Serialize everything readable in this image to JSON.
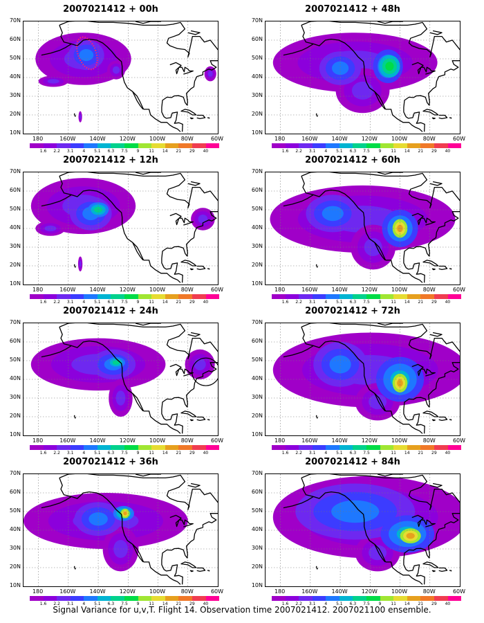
{
  "lat_labels": [
    "70N",
    "60N",
    "50N",
    "40N",
    "30N",
    "20N",
    "10N"
  ],
  "lon_labels": [
    "180",
    "160W",
    "140W",
    "120W",
    "100W",
    "80W",
    "60W"
  ],
  "colorbar": {
    "levels": [
      "1.6",
      "2.2",
      "3.1",
      "4",
      "5.1",
      "6.3",
      "7.5",
      "9",
      "11",
      "14",
      "21",
      "29",
      "40"
    ],
    "colors": [
      "#a000c8",
      "#8c00dc",
      "#6e28f0",
      "#3c3cff",
      "#1e78ff",
      "#00b4d2",
      "#00d28c",
      "#00dc46",
      "#a0e632",
      "#e6dc32",
      "#e6a01e",
      "#f07828",
      "#f03c50",
      "#ff0096"
    ]
  },
  "caption": "Signal Variance for u,v,T. Flight 14. Observation time 2007021412. 2007021100 ensemble.",
  "panels": [
    {
      "title": "2007021412 + 00h",
      "blobs": [
        {
          "lon": -150,
          "lat": 50,
          "rx": 32,
          "ry": 14,
          "lvl": 0
        },
        {
          "lon": -148,
          "lat": 52,
          "rx": 12,
          "ry": 8,
          "lvl": 2
        },
        {
          "lon": -170,
          "lat": 38,
          "rx": 10,
          "ry": 3,
          "lvl": 0
        },
        {
          "lon": -128,
          "lat": 44,
          "rx": 6,
          "ry": 5,
          "lvl": 0
        },
        {
          "lon": -65,
          "lat": 42,
          "rx": 4,
          "ry": 4,
          "lvl": 0
        },
        {
          "lon": -152,
          "lat": 19,
          "rx": 1.2,
          "ry": 3,
          "lvl": 0
        }
      ],
      "markers": true,
      "circle": false
    },
    {
      "title": "2007021412 + 48h",
      "blobs": [
        {
          "lon": -130,
          "lat": 48,
          "rx": 55,
          "ry": 16,
          "lvl": 0
        },
        {
          "lon": -125,
          "lat": 33,
          "rx": 18,
          "ry": 12,
          "lvl": 0
        },
        {
          "lon": -140,
          "lat": 45,
          "rx": 14,
          "ry": 9,
          "lvl": 2
        },
        {
          "lon": -108,
          "lat": 46,
          "rx": 10,
          "ry": 9,
          "lvl": 3
        },
        {
          "lon": -105,
          "lat": 46,
          "rx": 4,
          "ry": 4,
          "lvl": 7
        },
        {
          "lon": -107,
          "lat": 46,
          "rx": 7,
          "ry": 6,
          "lvl": 5
        }
      ],
      "markers": false,
      "circle": false
    },
    {
      "title": "2007021412 + 12h",
      "blobs": [
        {
          "lon": -150,
          "lat": 52,
          "rx": 35,
          "ry": 15,
          "lvl": 0
        },
        {
          "lon": -172,
          "lat": 40,
          "rx": 10,
          "ry": 4,
          "lvl": 0
        },
        {
          "lon": -145,
          "lat": 48,
          "rx": 14,
          "ry": 9,
          "lvl": 2
        },
        {
          "lon": -140,
          "lat": 50,
          "rx": 7,
          "ry": 4,
          "lvl": 4
        },
        {
          "lon": -70,
          "lat": 45,
          "rx": 8,
          "ry": 6,
          "lvl": 0
        },
        {
          "lon": -152,
          "lat": 21,
          "rx": 1.5,
          "ry": 4,
          "lvl": 0
        }
      ],
      "markers": false,
      "circle": false
    },
    {
      "title": "2007021412 + 60h",
      "blobs": [
        {
          "lon": -125,
          "lat": 45,
          "rx": 62,
          "ry": 18,
          "lvl": 0
        },
        {
          "lon": -118,
          "lat": 30,
          "rx": 15,
          "ry": 12,
          "lvl": 0
        },
        {
          "lon": -145,
          "lat": 48,
          "rx": 18,
          "ry": 10,
          "lvl": 2
        },
        {
          "lon": -100,
          "lat": 40,
          "rx": 12,
          "ry": 10,
          "lvl": 3
        },
        {
          "lon": -100,
          "lat": 40,
          "rx": 5,
          "ry": 5,
          "lvl": 8
        }
      ],
      "markers": false,
      "circle": false
    },
    {
      "title": "2007021412 + 24h",
      "blobs": [
        {
          "lon": -140,
          "lat": 48,
          "rx": 45,
          "ry": 14,
          "lvl": 0
        },
        {
          "lon": -125,
          "lat": 30,
          "rx": 8,
          "ry": 10,
          "lvl": 0
        },
        {
          "lon": -130,
          "lat": 48,
          "rx": 15,
          "ry": 8,
          "lvl": 2
        },
        {
          "lon": -128,
          "lat": 49,
          "rx": 6,
          "ry": 3,
          "lvl": 4
        },
        {
          "lon": -72,
          "lat": 48,
          "rx": 10,
          "ry": 8,
          "lvl": 0
        }
      ],
      "markers": false,
      "circle": true
    },
    {
      "title": "2007021412 + 72h",
      "blobs": [
        {
          "lon": -120,
          "lat": 45,
          "rx": 65,
          "ry": 20,
          "lvl": 0
        },
        {
          "lon": -115,
          "lat": 28,
          "rx": 15,
          "ry": 10,
          "lvl": 0
        },
        {
          "lon": -140,
          "lat": 48,
          "rx": 18,
          "ry": 12,
          "lvl": 2
        },
        {
          "lon": -100,
          "lat": 40,
          "rx": 16,
          "ry": 12,
          "lvl": 3
        },
        {
          "lon": -100,
          "lat": 38,
          "rx": 5,
          "ry": 5,
          "lvl": 8
        }
      ],
      "markers": false,
      "circle": false
    },
    {
      "title": "2007021412 + 36h",
      "blobs": [
        {
          "lon": -135,
          "lat": 45,
          "rx": 55,
          "ry": 15,
          "lvl": 0
        },
        {
          "lon": -125,
          "lat": 30,
          "rx": 12,
          "ry": 12,
          "lvl": 0
        },
        {
          "lon": -140,
          "lat": 46,
          "rx": 16,
          "ry": 9,
          "lvl": 2
        },
        {
          "lon": -123,
          "lat": 49,
          "rx": 7,
          "ry": 4,
          "lvl": 4
        },
        {
          "lon": -122,
          "lat": 49,
          "rx": 3,
          "ry": 2.5,
          "lvl": 8
        }
      ],
      "markers": false,
      "circle": false
    },
    {
      "title": "2007021412 + 84h",
      "blobs": [
        {
          "lon": -120,
          "lat": 47,
          "rx": 65,
          "ry": 22,
          "lvl": 0
        },
        {
          "lon": -115,
          "lat": 28,
          "rx": 15,
          "ry": 10,
          "lvl": 0
        },
        {
          "lon": -130,
          "lat": 50,
          "rx": 40,
          "ry": 15,
          "lvl": 2
        },
        {
          "lon": -95,
          "lat": 38,
          "rx": 18,
          "ry": 10,
          "lvl": 3
        },
        {
          "lon": -93,
          "lat": 37,
          "rx": 7,
          "ry": 4,
          "lvl": 8
        }
      ],
      "markers": false,
      "circle": false
    }
  ]
}
